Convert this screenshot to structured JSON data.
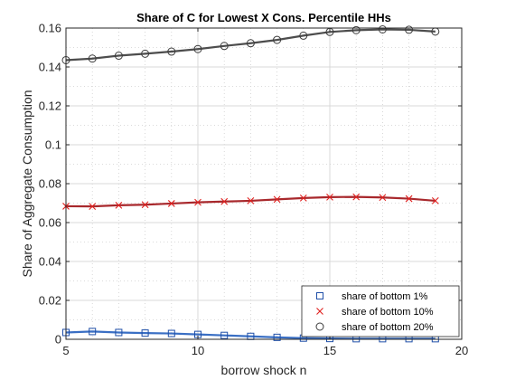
{
  "chart_data": {
    "type": "line",
    "title": "Share of C for Lowest X Cons. Percentile HHs",
    "xlabel": "borrow shock n",
    "ylabel": "Share of Aggregate Consumption",
    "xlim": [
      5,
      20
    ],
    "ylim": [
      0,
      0.16
    ],
    "xticks": [
      5,
      10,
      15,
      20
    ],
    "yticks": [
      0,
      0.02,
      0.04,
      0.06,
      0.08,
      0.1,
      0.12,
      0.14,
      0.16
    ],
    "xtick_labels": [
      "5",
      "10",
      "15",
      "20"
    ],
    "ytick_labels": [
      "0",
      "0.02",
      "0.04",
      "0.06",
      "0.08",
      "0.1",
      "0.12",
      "0.14",
      "0.16"
    ],
    "grid": true,
    "legend_position": "bottom-right",
    "x": [
      5,
      6,
      7,
      8,
      9,
      10,
      11,
      12,
      13,
      14,
      15,
      16,
      17,
      18,
      19
    ],
    "series": [
      {
        "name": "share of bottom 1%",
        "marker": "square",
        "line_color": "#3a6fc4",
        "marker_color": "#1f4fa8",
        "values": [
          0.0035,
          0.004,
          0.0035,
          0.0032,
          0.003,
          0.0025,
          0.002,
          0.0015,
          0.001,
          0.0006,
          0.0004,
          0.0003,
          0.0003,
          0.0003,
          0.0003
        ]
      },
      {
        "name": "share of bottom 10%",
        "marker": "x",
        "line_color": "#a8282c",
        "marker_color": "#e0201e",
        "values": [
          0.0684,
          0.0683,
          0.0689,
          0.0692,
          0.0698,
          0.0704,
          0.0708,
          0.0712,
          0.0719,
          0.0726,
          0.0731,
          0.0732,
          0.0729,
          0.0723,
          0.0712
        ]
      },
      {
        "name": "share of bottom 20%",
        "marker": "circle",
        "line_color": "#4d4d4d",
        "marker_color": "#3c3c3c",
        "values": [
          0.1435,
          0.1443,
          0.1458,
          0.1468,
          0.1479,
          0.1492,
          0.1508,
          0.1522,
          0.1539,
          0.1561,
          0.158,
          0.1589,
          0.1593,
          0.1591,
          0.1582
        ]
      }
    ]
  }
}
